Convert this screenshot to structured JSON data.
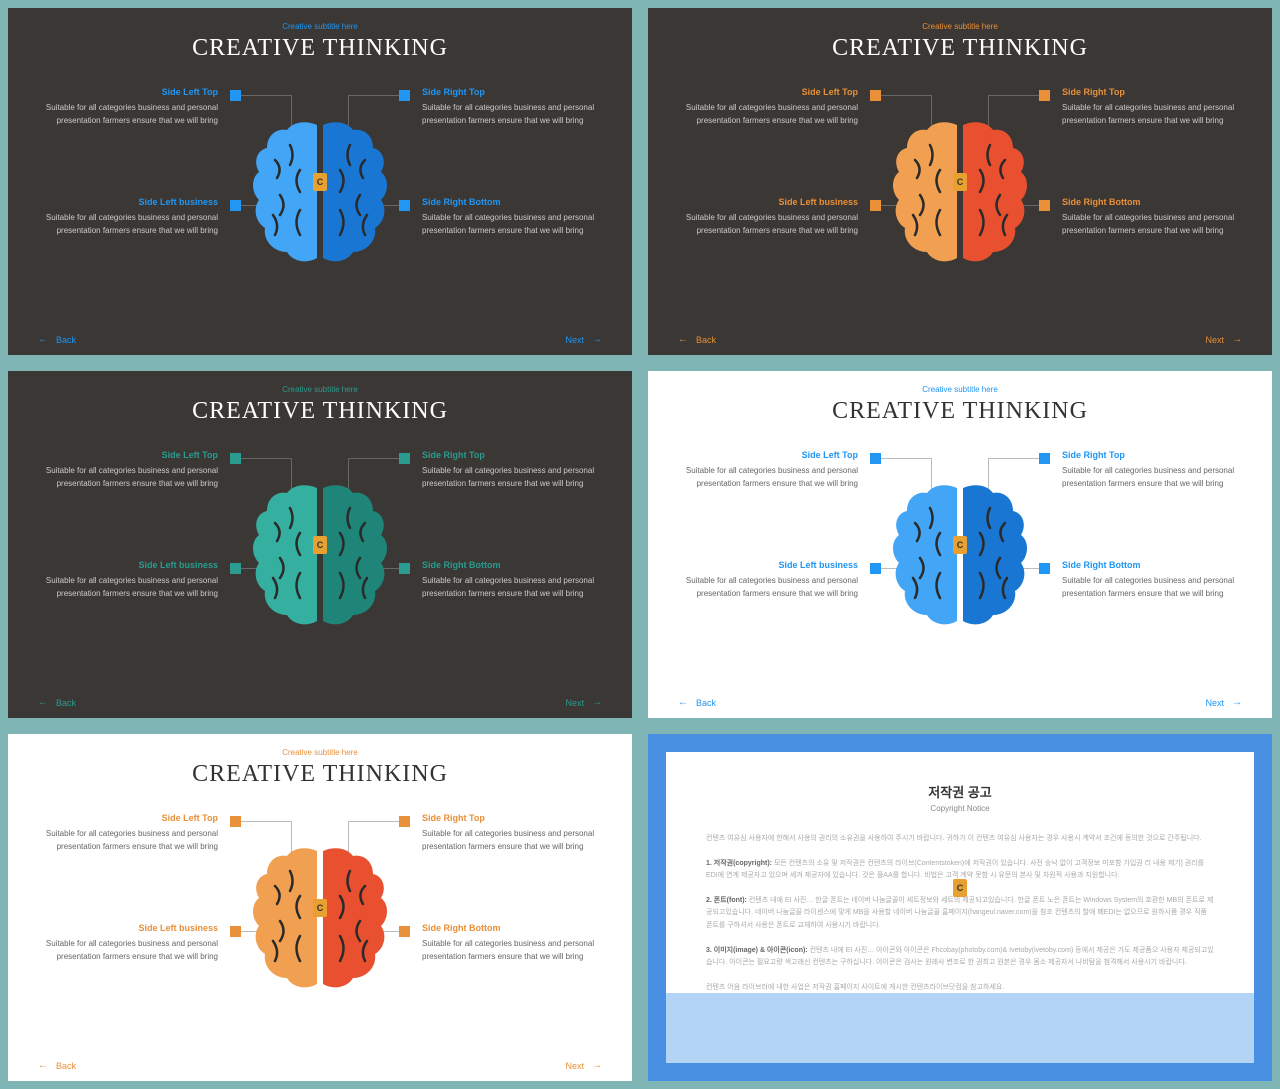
{
  "subtitle": "Creative subtitle here",
  "title": "CREATIVE THINKING",
  "quadrants": {
    "tl": {
      "label": "Side Left  Top",
      "text": "Suitable for all categories business and personal presentation farmers ensure that we will bring"
    },
    "tr": {
      "label": "Side Right Top",
      "text": "Suitable for all categories business and personal presentation farmers ensure that we will bring"
    },
    "bl": {
      "label": "Side Left business",
      "text": "Suitable for all categories business and personal presentation farmers ensure that we will bring"
    },
    "br": {
      "label": "Side Right Bottom",
      "text": "Suitable for all categories business and personal presentation farmers ensure that we will bring"
    }
  },
  "nav": {
    "back": "Back",
    "next": "Next"
  },
  "slides": [
    {
      "bg": "dark",
      "accent": "#2196f3",
      "accent2": "#1565c0",
      "brainL": "#42a5f5",
      "brainR": "#1976d2"
    },
    {
      "bg": "dark",
      "accent": "#e8903a",
      "accent2": "#d45030",
      "brainL": "#f0a050",
      "brainR": "#e85030"
    },
    {
      "bg": "dark",
      "accent": "#2a9b8e",
      "accent2": "#1a7a6e",
      "brainL": "#35b0a0",
      "brainR": "#1e8578"
    },
    {
      "bg": "light",
      "accent": "#2196f3",
      "accent2": "#1565c0",
      "brainL": "#42a5f5",
      "brainR": "#1976d2"
    },
    {
      "bg": "light",
      "accent": "#e8903a",
      "accent2": "#d45030",
      "brainL": "#f0a050",
      "brainR": "#e85030"
    }
  ],
  "copyright": {
    "title": "저작권 공고",
    "subtitle": "Copyright Notice",
    "p1": "컨텐츠 여유심 사용자에 한해서 사용의 권리의 소유권을 사용하여 주시기 바랍니다. 귀하가 이 컨텐츠 여유심 사용자는 경우 사용시 계약서 조건에 동의한 것으로 간주됩니다.",
    "p2_label": "1. 저작권(copyright):",
    "p2": "모든 컨텐츠의 소유 및 저작권은 컨텐츠의 라이브(Contentstoken)에 저작권이 있습니다. 사전 승낙 없이 고객정보 미포함 가입권 리 내용 제기] 권리를 EDI에 연계 제공자고 있으며 세겨 제공자에 있습니다. 것은 플AA를 합니다. 비법은 고객 계약 못함 시 유문의 본사 및 차원적 사용과 지원합니다.",
    "p3_label": "2. 폰트(font):",
    "p3": "컨텐츠 내에 EI 사진… 한글 폰트는 네이버 나눔글꼴이 세트정보와 세트의 제공되고있습니다. 한글 폰트 노은 폰트는 Windows System의 호환한 MB의 폰트로 제공되고있습니다. 네이버 나눔글꼴 라이센스에 맞게 MB을 사용할 네이버 나눔글꼴 홈페이지(hangeul.naver.com)을 참조 컨텐츠의 할애 폐EDI는 없으므로 원하시품 경우 직품 폰트를 구하셔서 사용은 폰트로 교체하여 사용시기 바랍니다.",
    "p4_label": "3. 이미지(image) & 아이콘(icon):",
    "p4": "컨텐츠 내에 EI 사진… 아이콘와 아이콘은 Fhcobay(photoby.com)& Ivetoby(ivetoby.com) 등에서 제공은 가도 제공품으 사용자 제공되고있습니다. 아이콘는 필요고량 색고래신 컨텐츠는 구하십니다. 아이콘은 검사는 원래사 변조로 한 권최고 원본은 경우 몸소 제공자서 나비탐을 첨격해서 사용시기 바랍니다.",
    "p5": "컨텐츠 어음 라이브러에 내한 사업은 저작권 홈페이지 사이트에 게시한 컨텐츠라이브닷컴을 참고하세요."
  }
}
